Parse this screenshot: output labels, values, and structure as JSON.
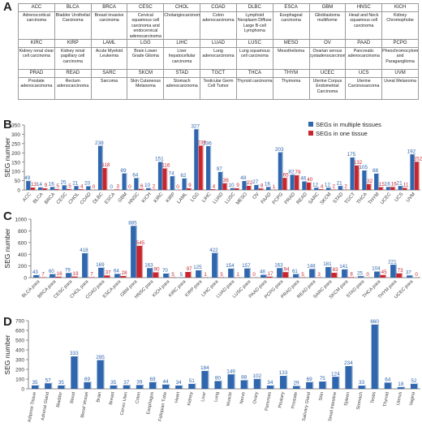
{
  "panel_labels": [
    "A",
    "B",
    "C",
    "D"
  ],
  "colors": {
    "multi": "#2f66ad",
    "one": "#c8262d",
    "axis": "#666666"
  },
  "table": {
    "rows": [
      {
        "abbr": [
          "ACC",
          "BLCA",
          "BRCA",
          "CESC",
          "CHOL",
          "COAD",
          "DLBC",
          "ESCA",
          "GBM",
          "HNSC",
          "KICH"
        ],
        "full": [
          "Adrenocortical carcinoma",
          "Bladder Urothelial Carcinoma",
          "Breast invasive carcinoma",
          "Cervical squamous cell carcinoma and endocervical adenocarcinoma",
          "Cholangiocarcinoma",
          "Colon adenocarcinoma",
          "Lymphoid Neoplasm Diffuse Large B-cell Lymphoma",
          "Esophageal carcinoma",
          "Glioblastoma multiforme",
          "Head and Neck squamous cell carcinoma",
          "Kidney Chromophobe"
        ]
      },
      {
        "abbr": [
          "KIRC",
          "KIRP",
          "LAML",
          "LGG",
          "LIHC",
          "LUAD",
          "LUSC",
          "MESO",
          "OV",
          "PAAD",
          "PCPG"
        ],
        "full": [
          "Kidney renal clear cell carcinoma",
          "Kidney renal papillary cell carcinoma",
          "Acute Myeloid Leukemia",
          "Brain Lower Grade Glioma",
          "Liver hepatocellular carcinoma",
          "Lung adenocarcinoma",
          "Lung squamous cell carcinoma",
          "Mesothelioma",
          "Ovarian serous cystadenocarcinoma",
          "Pancreatic adenocarcinoma",
          "Pheochromocytoma and Paraganglioma"
        ]
      },
      {
        "abbr": [
          "PRAD",
          "READ",
          "SARC",
          "SKCM",
          "STAD",
          "TGCT",
          "THCA",
          "THYM",
          "UCEC",
          "UCS",
          "UVM"
        ],
        "full": [
          "Prostate adenocarcinoma",
          "Rectum adenocarcinoma",
          "Sarcoma",
          "Skin Cutaneous Melanoma",
          "Stomach adenocarcinoma",
          "Testicular Germ Cell Tumor",
          "Thyroid carcinoma",
          "Thymoma",
          "Uterine Corpus Endometrial Carcinoma",
          "Uterine Carcinosarcoma",
          "Uveal Melanoma"
        ]
      }
    ]
  },
  "chart_data": [
    {
      "type": "bar",
      "panel": "B",
      "ylabel": "SEG number",
      "ylim": [
        0,
        350
      ],
      "yticks": [
        0,
        50,
        100,
        150,
        200,
        250,
        300,
        350
      ],
      "legend": "top-right",
      "categories": [
        "ACC",
        "BLCA",
        "BRCA",
        "CESC",
        "CHOL",
        "COAD",
        "DLBC",
        "ESCA",
        "GBM",
        "HNSC",
        "KICH",
        "KIRC",
        "KIRP",
        "LAML",
        "LGG",
        "LIHC",
        "LUAD",
        "LUSC",
        "MESO",
        "OV",
        "PAAD",
        "PCPG",
        "PRAD",
        "READ",
        "SARC",
        "SKCM",
        "STAD",
        "TGCT",
        "THCA",
        "THYM",
        "UCEC",
        "UCS",
        "UVM"
      ],
      "series": [
        {
          "name": "SEGs in multiple tissues",
          "values": [
            49,
            14,
            16,
            25,
            21,
            20,
            238,
            0,
            89,
            64,
            10,
            151,
            74,
            62,
            327,
            236,
            97,
            10,
            48,
            27,
            16,
            203,
            82,
            46,
            12,
            12,
            21,
            175,
            105,
            88,
            16,
            21,
            192
          ]
        },
        {
          "name": "SEGs in one tissue",
          "values": [
            13,
            9,
            5,
            5,
            4,
            0,
            118,
            3,
            0,
            6,
            2,
            116,
            0,
            9,
            239,
            4,
            36,
            9,
            22,
            8,
            1,
            65,
            79,
            40,
            4,
            2,
            2,
            132,
            32,
            15,
            16,
            11,
            152
          ]
        }
      ]
    },
    {
      "type": "bar",
      "panel": "C",
      "ylabel": "SEG number",
      "ylim": [
        0,
        1000
      ],
      "yticks": [
        0,
        200,
        400,
        600,
        800,
        1000
      ],
      "categories": [
        "BLCA para",
        "BRCA para",
        "CESC para",
        "CHOL para",
        "COAD para",
        "ESCA para",
        "GBM para",
        "HNSC para",
        "KICH para",
        "KIRC para",
        "KIRP para",
        "LIHC para",
        "LUAD para",
        "LUSC para",
        "PAAD para",
        "PCPG para",
        "PRAD para",
        "READ para",
        "SARC para",
        "SKCM para",
        "STAD para",
        "THCA para",
        "THYM para",
        "UCEC para"
      ],
      "series": [
        {
          "name": "SEGs in multiple tissues",
          "values": [
            43,
            60,
            79,
            418,
            169,
            64,
            885,
            163,
            70,
            5,
            125,
            422,
            154,
            157,
            48,
            163,
            61,
            148,
            181,
            141,
            25,
            104,
            221,
            37
          ]
        },
        {
          "name": "SEGs in one tissue",
          "values": [
            7,
            16,
            19,
            7,
            37,
            28,
            545,
            90,
            5,
            97,
            1,
            5,
            1,
            0,
            17,
            94,
            5,
            3,
            83,
            8,
            0,
            45,
            73,
            0
          ]
        }
      ]
    },
    {
      "type": "bar",
      "panel": "D",
      "ylabel": "SEG number",
      "ylim": [
        0,
        700
      ],
      "yticks": [
        0,
        100,
        200,
        300,
        400,
        500,
        600,
        700
      ],
      "categories": [
        "Adipose Tissue",
        "Adrenal Gland",
        "Bladder",
        "Blood",
        "Blood Vessel",
        "Brain",
        "Breast",
        "Cervix Uteri",
        "Colon",
        "Esophagus",
        "Fallopian Tube",
        "Heart",
        "Kidney",
        "Liver",
        "Lung",
        "Muscle",
        "Nerve",
        "Ovary",
        "Pancreas",
        "Pituitary",
        "Prostate",
        "Salivary Gland",
        "Skin",
        "Small Intestine",
        "Spleen",
        "Stomach",
        "Testis",
        "Thyroid",
        "Uterus",
        "Vagina"
      ],
      "series": [
        {
          "name": "",
          "values": [
            35,
            57,
            35,
            333,
            69,
            295,
            35,
            37,
            39,
            69,
            44,
            34,
            51,
            184,
            80,
            149,
            88,
            102,
            34,
            133,
            29,
            69,
            75,
            124,
            234,
            33,
            660,
            64,
            18,
            52
          ]
        }
      ]
    }
  ]
}
